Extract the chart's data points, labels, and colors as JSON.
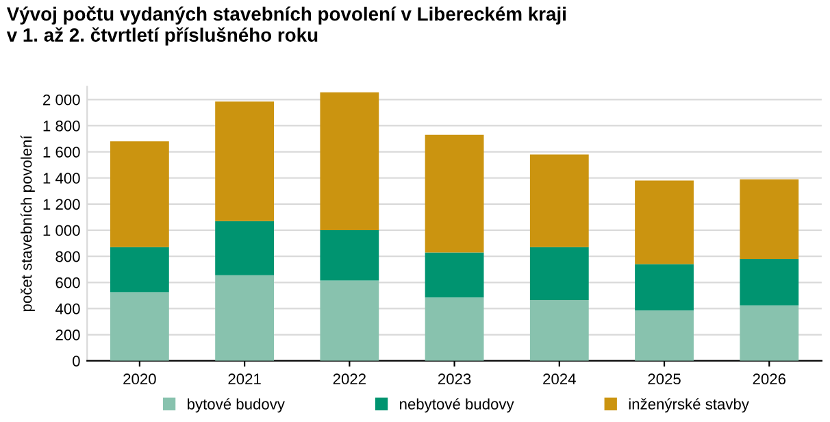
{
  "chart_data": {
    "type": "bar",
    "stacked": true,
    "title": "Vývoj počtu vydaných stavebních povolení v Libereckém kraji\nv 1. až 2. čtvrtletí příslušného roku",
    "ylabel": "počet stavebních povolení",
    "categories": [
      "2020",
      "2021",
      "2022",
      "2023",
      "2024",
      "2025",
      "2026"
    ],
    "series": [
      {
        "name": "bytové budovy",
        "color": "#88c2ae",
        "values": [
          525,
          655,
          615,
          485,
          465,
          385,
          425
        ]
      },
      {
        "name": "nebytové budovy",
        "color": "#009470",
        "values": [
          345,
          415,
          385,
          345,
          405,
          355,
          355
        ]
      },
      {
        "name": "inženýrské stavby",
        "color": "#cb9410",
        "values": [
          810,
          915,
          1055,
          900,
          710,
          640,
          610
        ]
      }
    ],
    "ylim": [
      0,
      2100
    ],
    "yticks": [
      0,
      200,
      400,
      600,
      800,
      {
        "value": 1000,
        "label": "1 000"
      },
      {
        "value": 1200,
        "label": "1 200"
      },
      {
        "value": 1400,
        "label": "1 400"
      },
      {
        "value": 1600,
        "label": "1 600"
      },
      {
        "value": 1800,
        "label": "1 800"
      },
      {
        "value": 2000,
        "label": "2 000"
      }
    ],
    "grid": "y",
    "legend": "bottom"
  }
}
